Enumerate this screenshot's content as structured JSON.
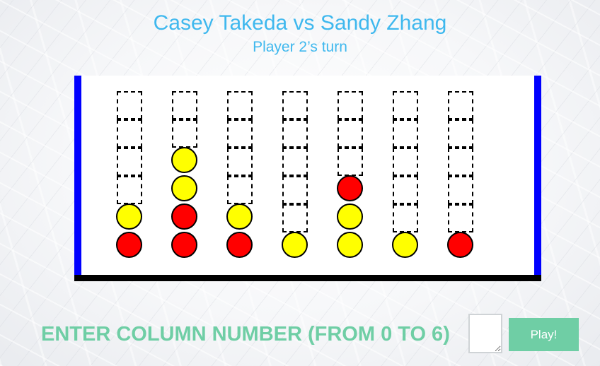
{
  "header": {
    "matchup": "Casey Takeda vs Sandy Zhang",
    "turn": "Player 2’s turn"
  },
  "board": {
    "columns": 7,
    "rows": 6,
    "colors": {
      "post": "#0000ff",
      "base": "#000000",
      "player1_disc": "#ff0000",
      "player2_disc": "#ffff00"
    },
    "grid_top_to_bottom": [
      [
        "empty",
        "empty",
        "empty",
        "empty",
        "empty",
        "empty",
        "empty"
      ],
      [
        "empty",
        "empty",
        "empty",
        "empty",
        "empty",
        "empty",
        "empty"
      ],
      [
        "empty",
        "yellow",
        "empty",
        "empty",
        "empty",
        "empty",
        "empty"
      ],
      [
        "empty",
        "yellow",
        "empty",
        "empty",
        "red",
        "empty",
        "empty"
      ],
      [
        "yellow",
        "red",
        "yellow",
        "empty",
        "yellow",
        "empty",
        "empty"
      ],
      [
        "red",
        "red",
        "red",
        "yellow",
        "yellow",
        "yellow",
        "red"
      ]
    ]
  },
  "controls": {
    "prompt": "ENTER COLUMN NUMBER (FROM 0 TO 6)",
    "column_input_value": "",
    "play_label": "Play!",
    "accent": "#6fcea5"
  }
}
